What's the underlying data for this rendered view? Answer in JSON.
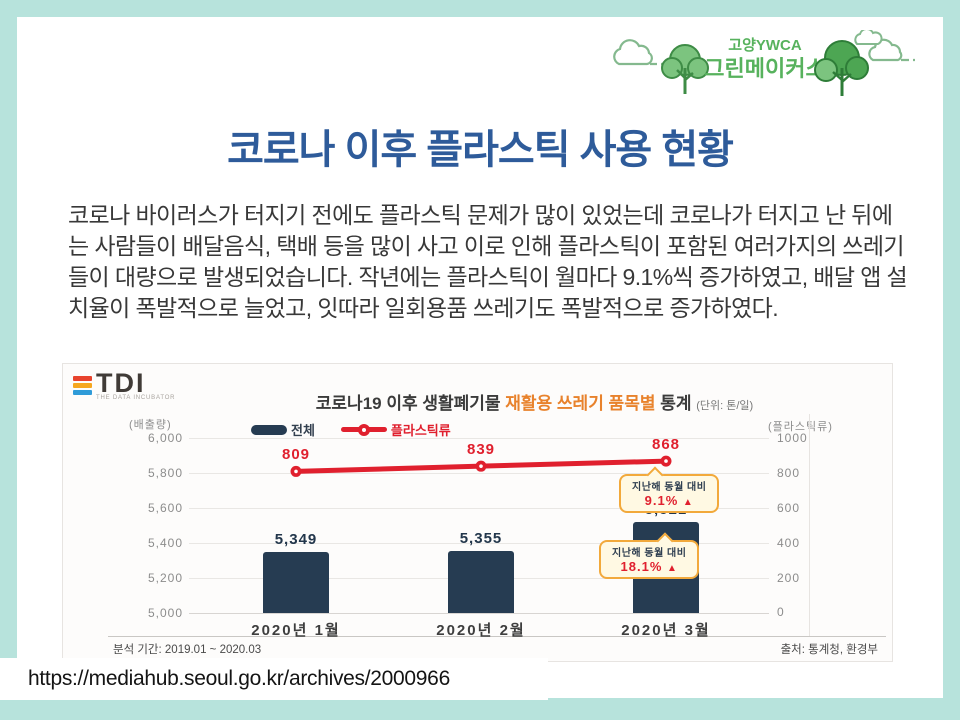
{
  "slide": {
    "title": "코로나 이후 플라스틱 사용 현황",
    "body_text": "코로나 바이러스가 터지기 전에도 플라스틱 문제가 많이 있었는데 코로나가 터지고 난 뒤에는 사람들이 배달음식, 택배 등을 많이 사고 이로 인해 플라스틱이 포함된 여러가지의 쓰레기들이 대량으로 발생되었습니다. 작년에는 플라스틱이 월마다 9.1%씩 증가하였고, 배달 앱 설치율이 폭발적으로 늘었고, 잇따라 일회용품 쓰레기도 폭발적으로 증가하였다.",
    "source_url": "https://mediahub.seoul.go.kr/archives/2000966",
    "title_color": "#2E5B9A",
    "border_color": "#B7E3DC"
  },
  "logo": {
    "org_line1": "고양YWCA",
    "org_line2": "그린메이커스",
    "text_color": "#57B25D"
  },
  "chart": {
    "brand": {
      "name": "TDI",
      "tagline": "THE DATA INCUBATOR"
    },
    "title_prefix": "코로나19 이후 생활폐기물 ",
    "title_highlight": "재활용 쓰레기 품목별",
    "title_suffix": " 통계 ",
    "title_unit": "(단위: 톤/일)",
    "left_axis_label": "(배출량)",
    "right_axis_label": "(플라스틱류)",
    "annotations": [
      {
        "line1": "지난해 동월 대비",
        "value": "9.1%",
        "arrow": "▲"
      },
      {
        "line1": "지난해 동월 대비",
        "value": "18.1%",
        "arrow": "▲"
      }
    ],
    "footer_left": "분석 기간: 2019.01 ~ 2020.03",
    "footer_right": "출처: 통계청, 환경부",
    "bar_color": "#263C52",
    "line_color": "#E0202E",
    "highlight_color": "#E8822C"
  },
  "chart_data": {
    "type": "bar",
    "title": "코로나19 이후 생활폐기물 재활용 쓰레기 품목별 통계",
    "unit": "톤/일",
    "categories": [
      "2020년 1월",
      "2020년 2월",
      "2020년 3월"
    ],
    "series": [
      {
        "name": "전체",
        "type": "bar",
        "axis": "left",
        "values": [
          5349,
          5355,
          5521
        ],
        "color": "#263C52"
      },
      {
        "name": "플라스틱류",
        "type": "line",
        "axis": "right",
        "values": [
          809,
          839,
          868
        ],
        "color": "#E0202E"
      }
    ],
    "left_axis": {
      "label": "(배출량)",
      "min": 5000,
      "max": 6000,
      "ticks": [
        6000,
        5800,
        5600,
        5400,
        5200,
        5000
      ]
    },
    "right_axis": {
      "label": "(플라스틱류)",
      "min": 0,
      "max": 1000,
      "ticks": [
        1000,
        800,
        600,
        400,
        200,
        0
      ]
    },
    "annotations": [
      {
        "target": "플라스틱류 2020년 3월",
        "text": "지난해 동월 대비 9.1% ▲"
      },
      {
        "target": "전체 2020년 3월",
        "text": "지난해 동월 대비 18.1% ▲"
      }
    ],
    "legend_position": "top",
    "grid": true,
    "analysis_period": "2019.01 ~ 2020.03",
    "source": "통계청, 환경부"
  }
}
